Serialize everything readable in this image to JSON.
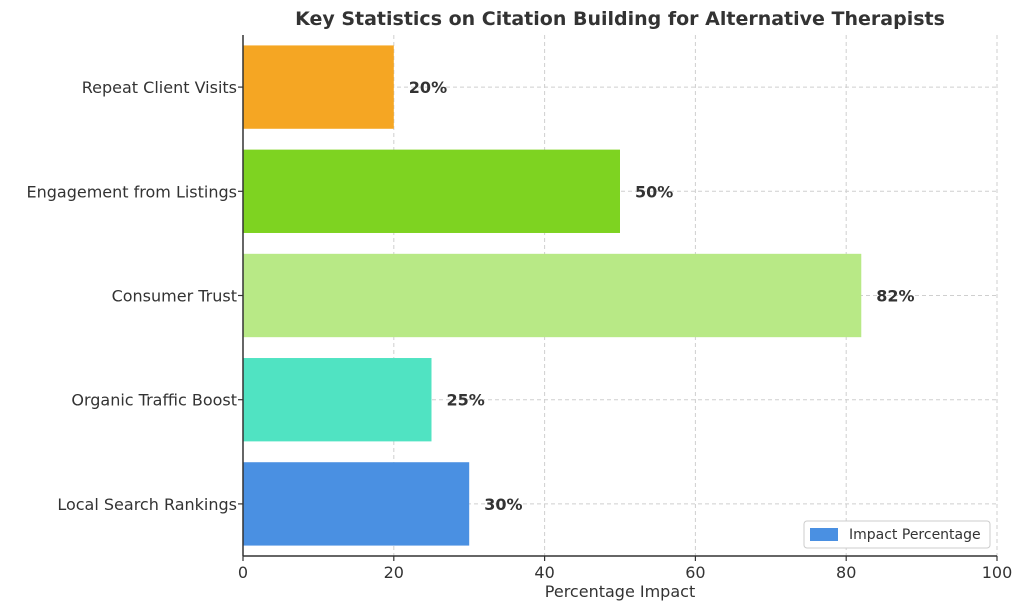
{
  "chart_data": {
    "type": "bar",
    "orientation": "horizontal",
    "title": "Key Statistics on Citation Building for Alternative Therapists",
    "xlabel": "Percentage Impact",
    "ylabel": "",
    "xlim": [
      0,
      100
    ],
    "xticks": [
      "0",
      "20",
      "40",
      "60",
      "80",
      "100"
    ],
    "grid": true,
    "legend": {
      "label": "Impact Percentage",
      "placement": "bottom-right",
      "color": "#4a90e2"
    },
    "categories": [
      "Local Search Rankings",
      "Organic Traffic Boost",
      "Consumer Trust",
      "Engagement from Listings",
      "Repeat Client Visits"
    ],
    "values": [
      30,
      25,
      82,
      50,
      20
    ],
    "value_labels": [
      "30%",
      "25%",
      "82%",
      "50%",
      "20%"
    ],
    "colors": [
      "#4a90e2",
      "#50e3c2",
      "#b8e986",
      "#7ed321",
      "#f5a623"
    ]
  }
}
